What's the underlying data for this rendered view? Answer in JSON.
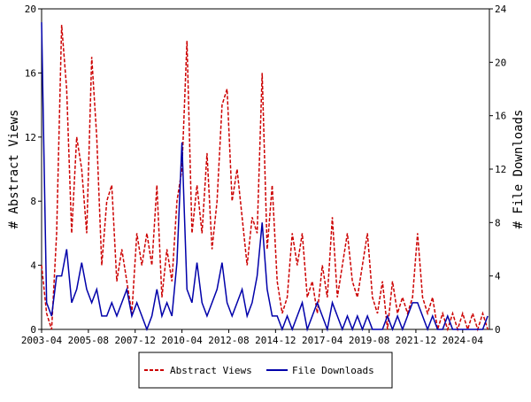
{
  "chart_data": {
    "type": "line",
    "x": [
      "2003-04",
      "2003-07",
      "2003-10",
      "2004-01",
      "2004-04",
      "2004-07",
      "2004-10",
      "2005-01",
      "2005-04",
      "2005-07",
      "2005-10",
      "2006-01",
      "2006-04",
      "2006-07",
      "2006-10",
      "2007-01",
      "2007-04",
      "2007-07",
      "2007-10",
      "2008-01",
      "2008-04",
      "2008-07",
      "2008-10",
      "2009-01",
      "2009-04",
      "2009-07",
      "2009-10",
      "2010-01",
      "2010-04",
      "2010-07",
      "2010-10",
      "2011-01",
      "2011-04",
      "2011-07",
      "2011-10",
      "2012-01",
      "2012-04",
      "2012-07",
      "2012-10",
      "2013-01",
      "2013-04",
      "2013-07",
      "2013-10",
      "2014-01",
      "2014-04",
      "2014-07",
      "2014-10",
      "2015-01",
      "2015-04",
      "2015-07",
      "2015-10",
      "2016-01",
      "2016-04",
      "2016-07",
      "2016-10",
      "2017-01",
      "2017-04",
      "2017-07",
      "2017-10",
      "2018-01",
      "2018-04",
      "2018-07",
      "2018-10",
      "2019-01",
      "2019-04",
      "2019-07",
      "2019-10",
      "2020-01",
      "2020-04",
      "2020-07",
      "2020-10",
      "2021-01",
      "2021-04",
      "2021-07",
      "2021-10",
      "2022-01",
      "2022-04",
      "2022-07",
      "2022-10",
      "2023-01",
      "2023-04",
      "2023-07",
      "2023-10",
      "2024-01",
      "2024-04",
      "2024-07",
      "2024-10",
      "2025-01",
      "2025-04",
      "2025-07"
    ],
    "series": [
      {
        "name": "Abstract Views",
        "color": "#cc0000",
        "dash": true,
        "values": [
          4,
          1,
          0,
          6,
          19,
          15,
          6,
          12,
          10,
          6,
          17,
          12,
          4,
          8,
          9,
          3,
          5,
          3,
          1,
          6,
          4,
          6,
          4,
          9,
          2,
          5,
          3,
          8,
          10,
          18,
          6,
          9,
          6,
          11,
          5,
          8,
          14,
          15,
          8,
          10,
          7,
          4,
          7,
          6,
          16,
          5,
          9,
          3,
          1,
          2,
          6,
          4,
          6,
          2,
          3,
          1,
          4,
          2,
          7,
          2,
          4,
          6,
          3,
          2,
          4,
          6,
          2,
          1,
          3,
          0,
          3,
          1,
          2,
          1,
          2,
          6,
          2,
          1,
          2,
          0,
          1,
          0,
          1,
          0,
          1,
          0,
          1,
          0,
          1,
          0
        ]
      },
      {
        "name": "File Downloads",
        "color": "#0000aa",
        "axis": "y2",
        "values": [
          23,
          2,
          1,
          4,
          4,
          6,
          2,
          3,
          5,
          3,
          2,
          3,
          1,
          1,
          2,
          1,
          2,
          3,
          1,
          2,
          1,
          0,
          1,
          3,
          1,
          2,
          1,
          5,
          14,
          3,
          2,
          5,
          2,
          1,
          2,
          3,
          5,
          2,
          1,
          2,
          3,
          1,
          2,
          4,
          8,
          3,
          1,
          1,
          0,
          1,
          0,
          1,
          2,
          0,
          1,
          2,
          1,
          0,
          2,
          1,
          0,
          1,
          0,
          1,
          0,
          1,
          0,
          0,
          0,
          1,
          0,
          1,
          0,
          1,
          2,
          2,
          1,
          0,
          1,
          0,
          0,
          1,
          0,
          0,
          0,
          0,
          0,
          0,
          0,
          1
        ]
      }
    ],
    "xlim": [
      "2003-04",
      "2025-08"
    ],
    "xticks": [
      "2003-04",
      "2005-08",
      "2007-12",
      "2010-04",
      "2012-08",
      "2014-12",
      "2017-04",
      "2019-08",
      "2021-12",
      "2024-04"
    ],
    "ylim": [
      0,
      20
    ],
    "yticks": [
      0,
      4,
      8,
      12,
      16,
      20
    ],
    "y2lim": [
      0,
      24
    ],
    "y2ticks": [
      0,
      4,
      8,
      12,
      16,
      20,
      24
    ],
    "y_label": "# Abstract Views",
    "y2_label": "# File Downloads"
  }
}
